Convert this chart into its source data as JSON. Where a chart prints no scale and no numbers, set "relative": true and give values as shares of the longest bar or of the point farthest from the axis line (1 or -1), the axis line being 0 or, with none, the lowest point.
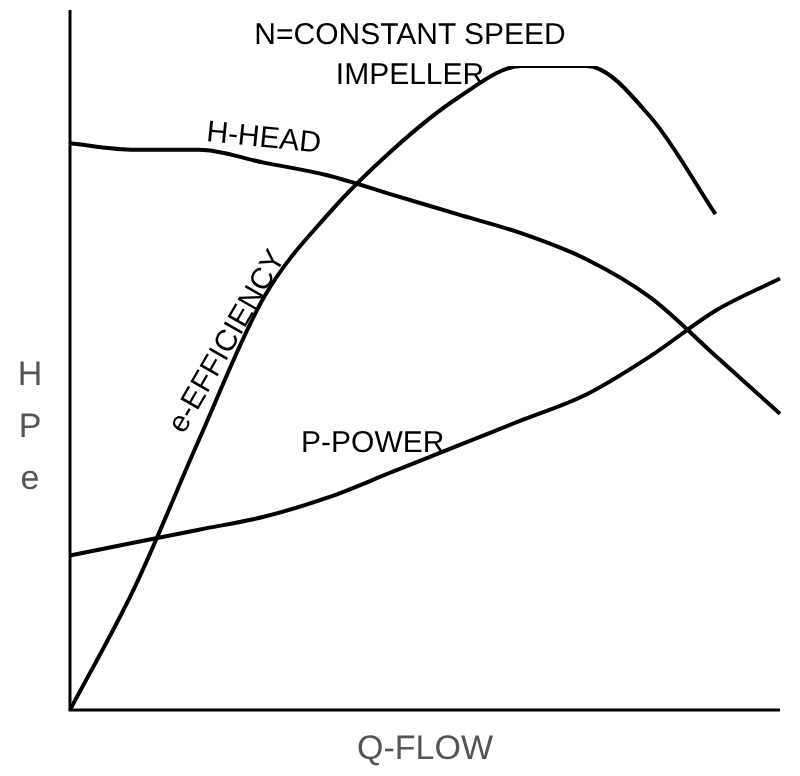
{
  "chart_data": {
    "type": "line",
    "title": "N=CONSTANT SPEED\nIMPELLER",
    "xlabel": "Q-FLOW",
    "ylabel": "H P e",
    "relative": true,
    "grid": false,
    "legend": false,
    "marker": "none",
    "line_style": "solid",
    "categories": [
      null,
      null,
      null,
      null,
      null,
      null,
      null,
      null,
      null,
      null,
      null,
      null
    ],
    "series": [
      {
        "name": "H-HEAD",
        "color": "#000000",
        "values": [
          0.88,
          0.87,
          0.87,
          0.85,
          0.83,
          0.8,
          0.77,
          0.74,
          0.7,
          0.64,
          0.55,
          0.46
        ]
      },
      {
        "name": "e-EFFICIENCY",
        "color": "#000000",
        "values": [
          0,
          0.19,
          0.42,
          0.64,
          0.77,
          0.87,
          0.95,
          1,
          1,
          0.92,
          0.77,
          null
        ]
      },
      {
        "name": "P-POWER",
        "color": "#000000",
        "values": [
          0.24,
          0.26,
          0.28,
          0.3,
          0.33,
          0.37,
          0.41,
          0.45,
          0.49,
          0.55,
          0.62,
          0.67
        ]
      }
    ]
  }
}
